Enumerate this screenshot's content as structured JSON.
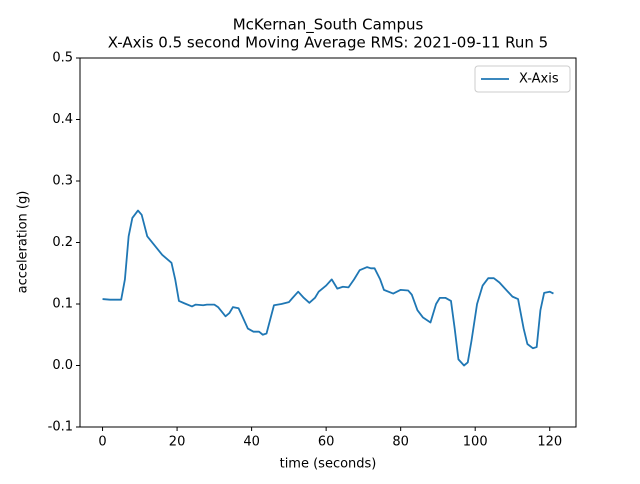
{
  "chart_data": {
    "type": "line",
    "title": "McKernan_South Campus",
    "subtitle": "X-Axis 0.5 second Moving Average RMS: 2021-09-11 Run 5",
    "x_label": "time (seconds)",
    "y_label": "acceleration (g)",
    "x": [
      0,
      2,
      5,
      6,
      7,
      8,
      9.5,
      10.5,
      12,
      14,
      16,
      18.5,
      19.5,
      20.5,
      22,
      24,
      25,
      27,
      28,
      30,
      31,
      33,
      34,
      35,
      36.5,
      37.5,
      39,
      40.5,
      42,
      43,
      44,
      45,
      46,
      48,
      50,
      51,
      52.5,
      54,
      55.5,
      57,
      58,
      60,
      61.5,
      63,
      64.5,
      66,
      67.5,
      69,
      71,
      72,
      73,
      74.5,
      75.5,
      78,
      80,
      82,
      83,
      84.5,
      86,
      88,
      89.5,
      90.5,
      92,
      93.5,
      94.5,
      95.5,
      97,
      98,
      99,
      100.5,
      102,
      103.5,
      105,
      106.5,
      108,
      110,
      111.5,
      113,
      114,
      115.5,
      116.5,
      117.5,
      118.5,
      120,
      121
    ],
    "series": [
      {
        "name": "X-Axis",
        "color": "#1f77b4",
        "values": [
          0.108,
          0.107,
          0.107,
          0.14,
          0.21,
          0.24,
          0.252,
          0.245,
          0.21,
          0.195,
          0.18,
          0.167,
          0.14,
          0.105,
          0.101,
          0.096,
          0.099,
          0.098,
          0.099,
          0.099,
          0.095,
          0.08,
          0.085,
          0.095,
          0.093,
          0.08,
          0.06,
          0.055,
          0.055,
          0.05,
          0.052,
          0.075,
          0.098,
          0.1,
          0.103,
          0.11,
          0.12,
          0.11,
          0.102,
          0.11,
          0.12,
          0.13,
          0.14,
          0.125,
          0.128,
          0.127,
          0.14,
          0.155,
          0.16,
          0.158,
          0.158,
          0.14,
          0.123,
          0.117,
          0.123,
          0.122,
          0.115,
          0.09,
          0.078,
          0.07,
          0.1,
          0.11,
          0.11,
          0.105,
          0.06,
          0.01,
          0.0,
          0.005,
          0.04,
          0.1,
          0.13,
          0.142,
          0.142,
          0.135,
          0.125,
          0.112,
          0.108,
          0.06,
          0.035,
          0.028,
          0.03,
          0.09,
          0.118,
          0.12,
          0.117
        ]
      }
    ],
    "xlim": [
      -6.05,
      127.05
    ],
    "xticks": [
      0,
      20,
      40,
      60,
      80,
      100,
      120
    ],
    "ylim": [
      -0.1,
      0.5
    ],
    "yticks": [
      -0.1,
      {
        "value": 0,
        "label": "0.0"
      },
      0.1,
      0.2,
      0.3,
      0.4,
      0.5
    ],
    "legend": "upper right"
  }
}
